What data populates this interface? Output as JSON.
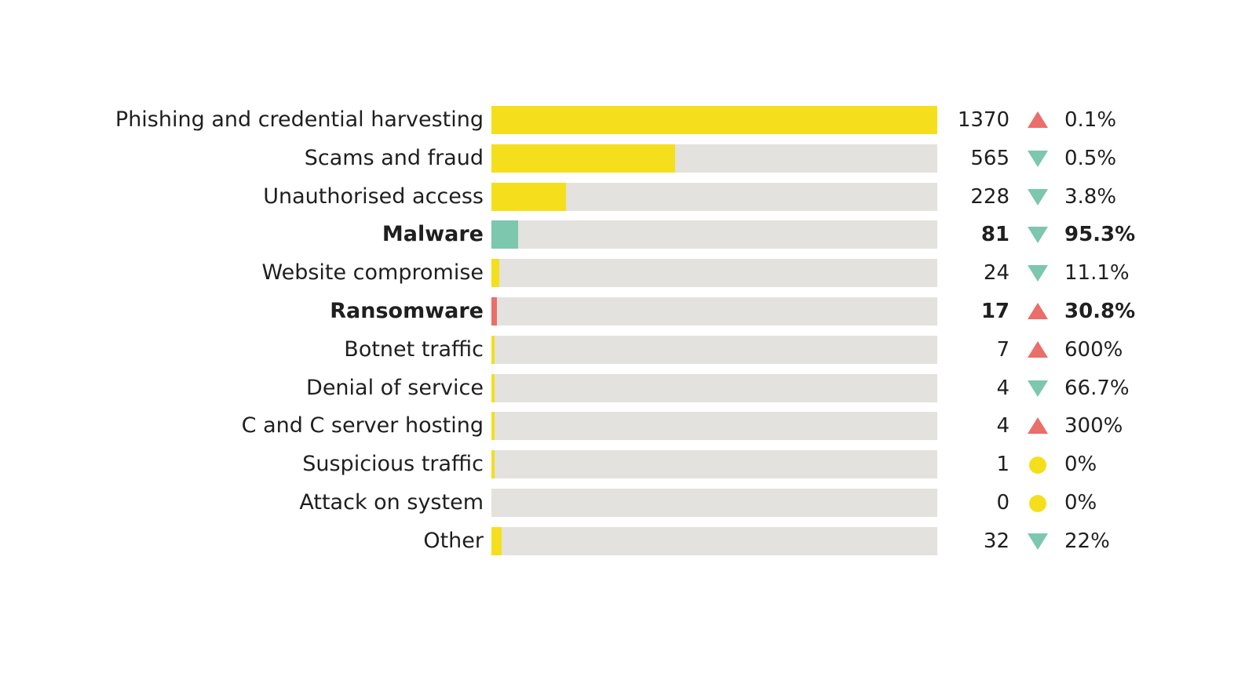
{
  "chart_data": {
    "type": "bar",
    "orientation": "horizontal",
    "categories": [
      "Phishing and credential harvesting",
      "Scams and fraud",
      "Unauthorised access",
      "Malware",
      "Website compromise",
      "Ransomware",
      "Botnet traffic",
      "Denial of service",
      "C and C server hosting",
      "Suspicious traffic",
      "Attack on system",
      "Other"
    ],
    "values": [
      1370,
      565,
      228,
      81,
      24,
      17,
      7,
      4,
      4,
      1,
      0,
      32
    ],
    "value_labels": [
      "1370",
      "565",
      "228",
      "81",
      "24",
      "17",
      "7",
      "4",
      "4",
      "1",
      "0",
      "32"
    ],
    "change_labels": [
      "0.1%",
      "0.5%",
      "3.8%",
      "95.3%",
      "11.1%",
      "30.8%",
      "600%",
      "66.7%",
      "300%",
      "0%",
      "0%",
      "22%"
    ],
    "change_direction": [
      "up",
      "down",
      "down",
      "down",
      "down",
      "up",
      "up",
      "down",
      "up",
      "none",
      "none",
      "down"
    ],
    "bar_colors": [
      "#f5df1c",
      "#f5df1c",
      "#f5df1c",
      "#7cc7ad",
      "#f5df1c",
      "#ea6e6a",
      "#f5df1c",
      "#f5df1c",
      "#f5df1c",
      "#f5df1c",
      "#f5df1c",
      "#f5df1c"
    ],
    "emphasized": [
      false,
      false,
      false,
      true,
      false,
      true,
      false,
      false,
      false,
      false,
      false,
      false
    ],
    "xlim": [
      0,
      1370
    ],
    "title": "",
    "xlabel": "",
    "ylabel": "",
    "grid": false,
    "legend": "none"
  },
  "colors": {
    "track": "#e3e2de",
    "up": "#ea6e6a",
    "down": "#7cc7ad",
    "none": "#f5df1c",
    "text": "#1f1f1f"
  }
}
